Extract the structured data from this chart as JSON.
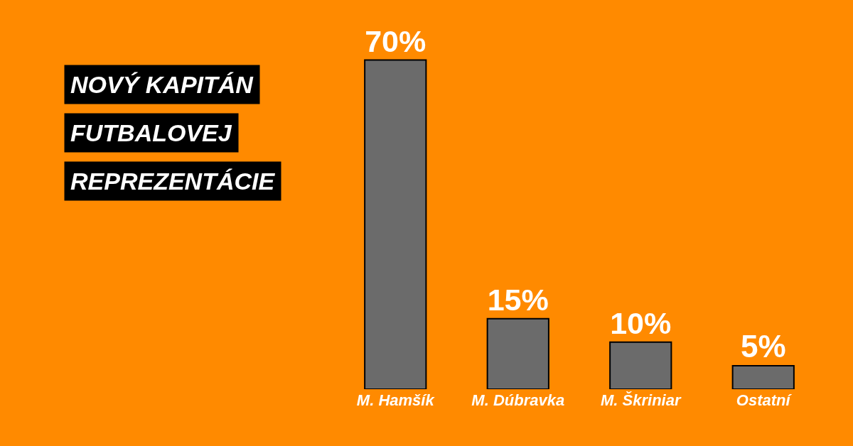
{
  "chart_data": {
    "type": "bar",
    "title": "NOVÝ KAPITÁN FUTBALOVEJ REPREZENTÁCIE",
    "categories": [
      "M. Hamšík",
      "M. Dúbravka",
      "M. Škriniar",
      "Ostatní"
    ],
    "values": [
      70,
      15,
      10,
      5
    ],
    "value_labels": [
      "70%",
      "15%",
      "10%",
      "5%"
    ],
    "color": "#6b6b6b",
    "grid": false,
    "legend": false
  }
}
